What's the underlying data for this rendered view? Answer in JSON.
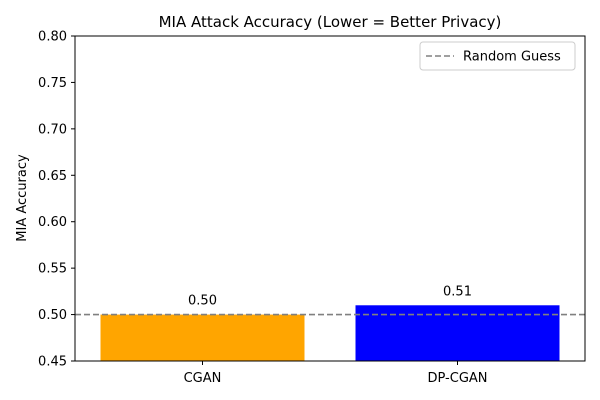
{
  "chart_data": {
    "type": "bar",
    "title": "MIA Attack Accuracy (Lower = Better Privacy)",
    "xlabel": "",
    "ylabel": "MIA Accuracy",
    "categories": [
      "CGAN",
      "DP-CGAN"
    ],
    "values": [
      0.5,
      0.51
    ],
    "value_labels": [
      "0.50",
      "0.51"
    ],
    "bar_colors": [
      "#FFA500",
      "#0000FF"
    ],
    "ylim": [
      0.45,
      0.8
    ],
    "yticks": [
      0.45,
      0.5,
      0.55,
      0.6,
      0.65,
      0.7,
      0.75,
      0.8
    ],
    "ytick_labels": [
      "0.45",
      "0.50",
      "0.55",
      "0.60",
      "0.65",
      "0.70",
      "0.75",
      "0.80"
    ],
    "reference_line": {
      "y": 0.5,
      "label": "Random Guess",
      "color": "#808080",
      "style": "dashed"
    },
    "legend": {
      "position": "top-right",
      "entries": [
        "Random Guess"
      ]
    },
    "grid": false
  }
}
